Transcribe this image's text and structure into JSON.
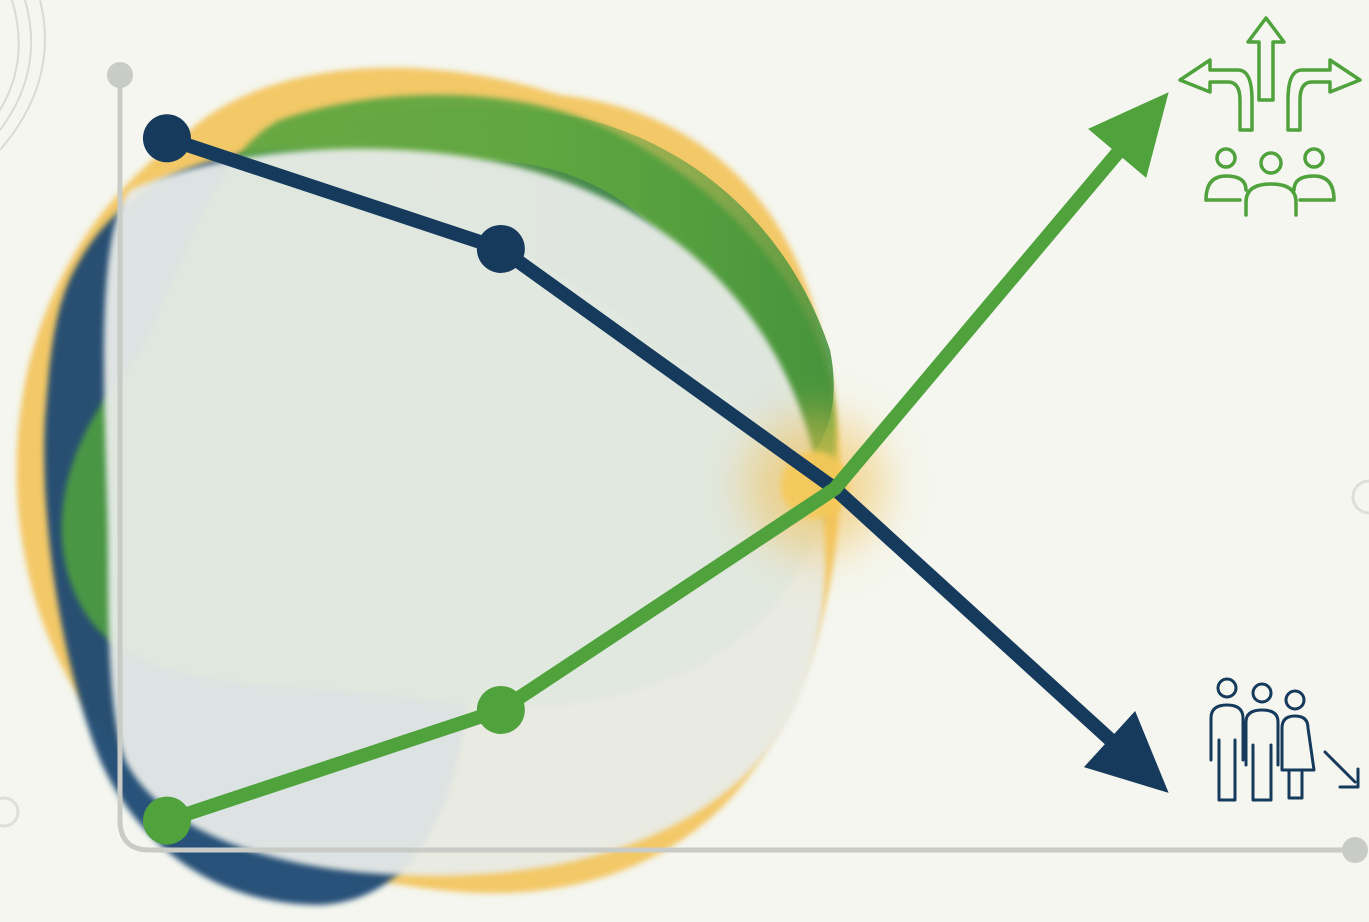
{
  "colors": {
    "background": "#f4f6ef",
    "navy": "#163a5c",
    "green": "#4fa23c",
    "amber": "#f3c04f",
    "axis": "#c9cbc6"
  },
  "icons": {
    "top_right": "diverging-arrows-people-icon",
    "bottom_right": "family-decline-icon"
  },
  "chart_data": {
    "type": "line",
    "title": "",
    "xlabel": "",
    "ylabel": "",
    "x": [
      0,
      1,
      2,
      3
    ],
    "xlim": [
      -0.5,
      3.6
    ],
    "ylim": [
      0,
      10
    ],
    "grid": false,
    "legend": "none",
    "series": [
      {
        "color": "#163a5c",
        "values": [
          8.5,
          7.3,
          4.7,
          1.4
        ],
        "markers": [
          0,
          1
        ],
        "arrow_end": true
      },
      {
        "color": "#4fa23c",
        "values": [
          1.1,
          2.3,
          4.7,
          9.0
        ],
        "markers": [
          0,
          1
        ],
        "arrow_end": true
      }
    ],
    "intersection": {
      "x": 2,
      "y": 4.7
    }
  }
}
